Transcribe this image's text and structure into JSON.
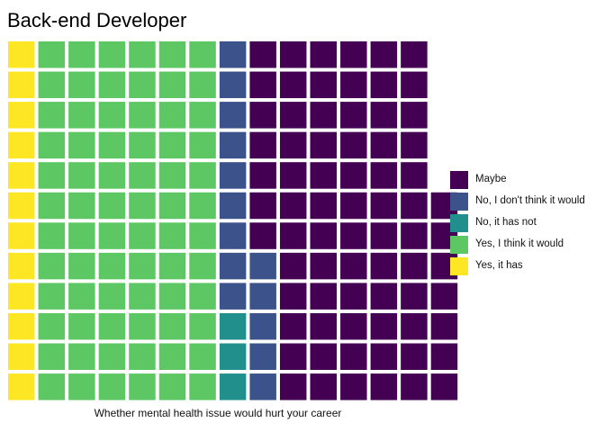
{
  "chart_data": {
    "type": "waffle",
    "title": "Back-end Developer",
    "xlabel": "Whether mental health issue would hurt your career",
    "ylabel": "",
    "grid": false,
    "legend_position": "right",
    "rows": 12,
    "fill_order": "column-wise, bottom to top",
    "series": [
      {
        "name": "Yes, it has",
        "count": 12,
        "color": "#FDE725"
      },
      {
        "name": "Yes, I think it would",
        "count": 72,
        "color": "#5DC863"
      },
      {
        "name": "No, it has not",
        "count": 3,
        "color": "#21908C"
      },
      {
        "name": "No, I don't think it would",
        "count": 14,
        "color": "#3B528B"
      },
      {
        "name": "Maybe",
        "count": 74,
        "color": "#440154"
      }
    ],
    "legend": [
      "Maybe",
      "No, I don't think it would",
      "No, it has not",
      "Yes, I think it would",
      "Yes, it has"
    ]
  }
}
